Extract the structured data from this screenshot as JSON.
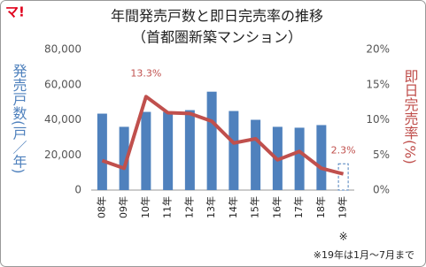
{
  "logo": "マ!",
  "chart_data": {
    "type": "bar-line",
    "title": "年間発売戸数と即日完売率の推移",
    "subtitle": "（首都圏新築マンション）",
    "y_label": "発売戸数(戸／年)",
    "y2_label": "即日完売率(%)",
    "categories": [
      "08年",
      "09年",
      "10年",
      "11年",
      "12年",
      "13年",
      "14年",
      "15年",
      "16年",
      "17年",
      "18年",
      "19年"
    ],
    "annotations": [
      {
        "category": "19年",
        "text": "※"
      }
    ],
    "footnote": "※19年は1月～7月まで",
    "ylim": [
      0,
      80000
    ],
    "yticks": [
      0,
      {
        "value": 20000,
        "label": "20,000"
      },
      {
        "value": 40000,
        "label": "40,000"
      },
      {
        "value": 60000,
        "label": "60,000"
      },
      {
        "value": 80000,
        "label": "80,000"
      }
    ],
    "y2lim": [
      0,
      20
    ],
    "y2ticks": [
      {
        "value": 0,
        "label": "0%"
      },
      {
        "value": 5,
        "label": "5%"
      },
      {
        "value": 10,
        "label": "10%"
      },
      {
        "value": 15,
        "label": "15%"
      },
      {
        "value": 20,
        "label": "20%"
      }
    ],
    "series": [
      {
        "name": "発売戸数",
        "type": "bar",
        "color": "#4f81bd",
        "axis": "y",
        "values": [
          43500,
          36000,
          44500,
          44500,
          45500,
          56000,
          45000,
          40000,
          36000,
          35500,
          37000,
          15000
        ],
        "dashed": [
          false,
          false,
          false,
          false,
          false,
          false,
          false,
          false,
          false,
          false,
          false,
          true
        ]
      },
      {
        "name": "即日完売率",
        "type": "line",
        "color": "#c0504d",
        "axis": "y2",
        "values": [
          4.2,
          3.1,
          13.3,
          11.0,
          10.9,
          9.8,
          6.7,
          7.3,
          4.3,
          5.5,
          3.1,
          2.3
        ],
        "value_labels": [
          null,
          null,
          "13.3%",
          null,
          null,
          null,
          null,
          null,
          null,
          null,
          null,
          "2.3%"
        ]
      }
    ]
  }
}
